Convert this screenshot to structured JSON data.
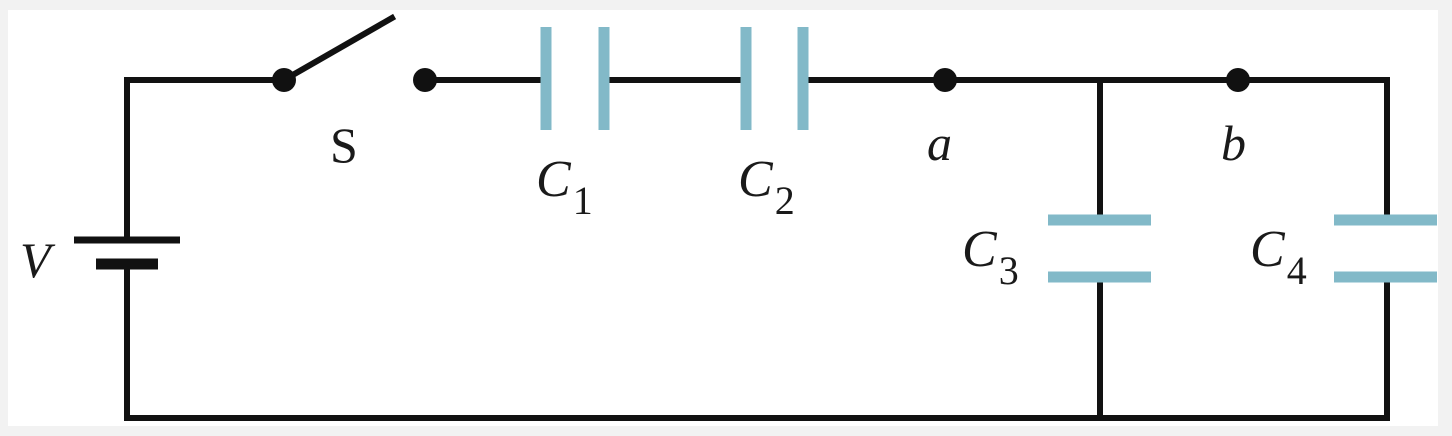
{
  "diagram": {
    "battery_label": "V",
    "switch_label": "S",
    "node_a_label": "a",
    "node_b_label": "b",
    "capacitors": [
      {
        "symbol": "C",
        "subscript": "1"
      },
      {
        "symbol": "C",
        "subscript": "2"
      },
      {
        "symbol": "C",
        "subscript": "3"
      },
      {
        "symbol": "C",
        "subscript": "4"
      }
    ],
    "colors": {
      "wire": "#111111",
      "capacitor_plate": "#82b9c8",
      "background": "#ffffff"
    }
  }
}
